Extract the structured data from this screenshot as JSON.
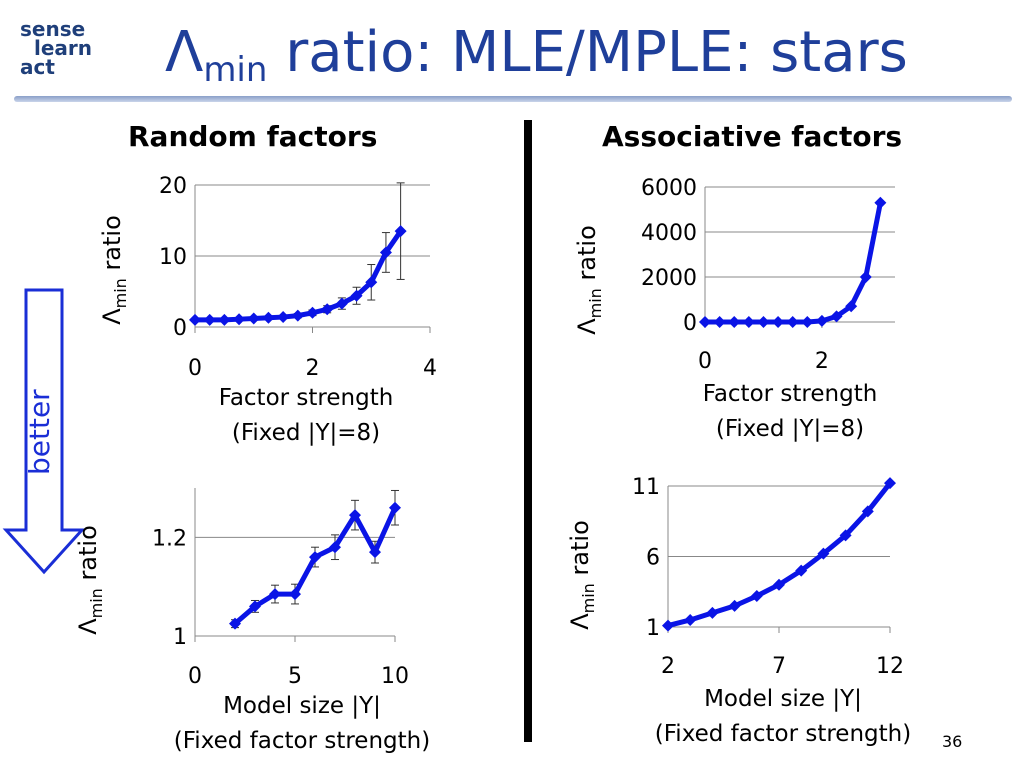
{
  "slide": {
    "logo": {
      "line1": "sense",
      "line2": "learn",
      "line3": "act"
    },
    "title": {
      "lambda": "Λ",
      "sub": "min",
      "rest": " ratio: MLE/MPLE: stars"
    },
    "left_heading": "Random factors",
    "right_heading": "Associative factors",
    "better_label": "better",
    "page_number": "36",
    "colors": {
      "series": "#0a14e6",
      "title": "#1f3f9a",
      "better": "#1a2ed6"
    }
  },
  "chart_data": [
    {
      "type": "line",
      "id": "rf",
      "xlabel": [
        "Factor strength",
        "(Fixed |Y|=8)"
      ],
      "ylabel": {
        "lambda": "Λ",
        "sub": "min",
        "rest": "ratio"
      },
      "xlim": [
        0,
        4
      ],
      "ylim": [
        0,
        20
      ],
      "xticks": [
        "0",
        "2",
        "4"
      ],
      "yticks": [
        "0",
        "10",
        "20"
      ],
      "series": [
        {
          "x": [
            0,
            0.25,
            0.5,
            0.75,
            1,
            1.25,
            1.5,
            1.75,
            2,
            2.25,
            2.5,
            2.75,
            3,
            3.25,
            3.5
          ],
          "y": [
            1,
            1,
            1,
            1.1,
            1.2,
            1.3,
            1.4,
            1.6,
            2,
            2.5,
            3.3,
            4.4,
            6.3,
            10.5,
            13.5
          ],
          "err": [
            0.2,
            0.2,
            0.2,
            0.2,
            0.2,
            0.2,
            0.2,
            0.3,
            0.4,
            0.5,
            0.8,
            1.2,
            2.5,
            2.8,
            6.8
          ]
        }
      ]
    },
    {
      "type": "line",
      "id": "rm",
      "xlabel": [
        "Model size |Y|",
        "(Fixed factor strength)"
      ],
      "ylabel": {
        "lambda": "Λ",
        "sub": "min",
        "rest": "ratio"
      },
      "xlim": [
        0,
        10
      ],
      "ylim": [
        1,
        1.3
      ],
      "xticks": [
        "0",
        "5",
        "10"
      ],
      "yticks": [
        "1",
        "1.2"
      ],
      "series": [
        {
          "x": [
            2,
            3,
            4,
            5,
            6,
            7,
            8,
            9,
            10
          ],
          "y": [
            1.025,
            1.06,
            1.085,
            1.085,
            1.16,
            1.18,
            1.245,
            1.17,
            1.26
          ],
          "err": [
            0.008,
            0.012,
            0.018,
            0.02,
            0.02,
            0.025,
            0.03,
            0.022,
            0.035
          ]
        }
      ]
    },
    {
      "type": "line",
      "id": "af",
      "xlabel": [
        "Factor strength",
        "(Fixed |Y|=8)"
      ],
      "ylabel": {
        "lambda": "Λ",
        "sub": "min",
        "rest": "ratio"
      },
      "xlim": [
        0,
        3.25
      ],
      "ylim": [
        0,
        6000
      ],
      "xticks": [
        "0",
        "2"
      ],
      "yticks": [
        "0",
        "2000",
        "4000",
        "6000"
      ],
      "series": [
        {
          "x": [
            0,
            0.25,
            0.5,
            0.75,
            1,
            1.25,
            1.5,
            1.75,
            2,
            2.25,
            2.5,
            2.75,
            3
          ],
          "y": [
            0,
            0,
            0,
            0,
            0,
            0,
            0,
            0,
            50,
            250,
            700,
            2000,
            5300
          ]
        }
      ]
    },
    {
      "type": "line",
      "id": "am",
      "xlabel": [
        "Model size |Y|",
        "(Fixed factor strength)"
      ],
      "ylabel": {
        "lambda": "Λ",
        "sub": "min",
        "rest": "ratio"
      },
      "xlim": [
        2,
        12
      ],
      "ylim": [
        1,
        11
      ],
      "xticks": [
        "2",
        "7",
        "12"
      ],
      "yticks": [
        "1",
        "6",
        "11"
      ],
      "series": [
        {
          "x": [
            2,
            3,
            4,
            5,
            6,
            7,
            8,
            9,
            10,
            11,
            12
          ],
          "y": [
            1.1,
            1.5,
            2,
            2.5,
            3.2,
            4,
            5,
            6.2,
            7.5,
            9.2,
            11.2
          ]
        }
      ]
    }
  ]
}
